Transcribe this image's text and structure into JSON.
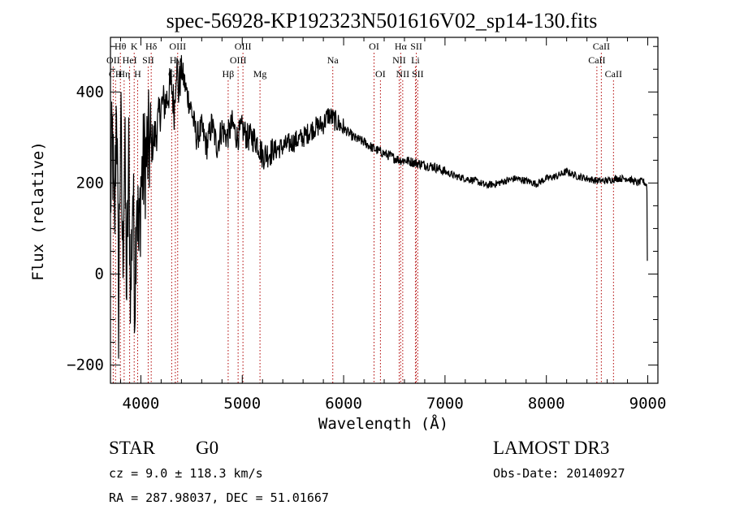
{
  "chart_data": {
    "type": "line",
    "title": "spec-56928-KP192323N501616V02_sp14-130.fits",
    "xlabel": "Wavelength (Å)",
    "ylabel": "Flux (relative)",
    "xlim": [
      3700,
      9100
    ],
    "ylim": [
      -240,
      520
    ],
    "x_ticks": [
      4000,
      5000,
      6000,
      7000,
      8000,
      9000
    ],
    "x_tick_labels": [
      "4000",
      "5000",
      "6000",
      "7000",
      "8000",
      "9000"
    ],
    "y_ticks": [
      -200,
      0,
      200,
      400
    ],
    "y_tick_labels": [
      "−200",
      "0",
      "200",
      "400"
    ],
    "series": [
      {
        "name": "spectrum",
        "x": [
          3700,
          3720,
          3740,
          3760,
          3780,
          3800,
          3820,
          3840,
          3860,
          3880,
          3900,
          3920,
          3940,
          3960,
          3980,
          4000,
          4050,
          4100,
          4150,
          4200,
          4250,
          4300,
          4330,
          4350,
          4370,
          4400,
          4450,
          4500,
          4550,
          4600,
          4650,
          4700,
          4750,
          4800,
          4850,
          4900,
          4950,
          5000,
          5050,
          5100,
          5150,
          5200,
          5300,
          5400,
          5500,
          5600,
          5700,
          5800,
          5850,
          5900,
          5950,
          6000,
          6100,
          6200,
          6300,
          6400,
          6500,
          6560,
          6600,
          6700,
          6800,
          6900,
          7000,
          7100,
          7200,
          7300,
          7400,
          7500,
          7600,
          7700,
          7800,
          7900,
          8000,
          8100,
          8200,
          8300,
          8400,
          8500,
          8600,
          8700,
          8800,
          8900,
          8950,
          8990,
          9000
        ],
        "values": [
          160,
          300,
          60,
          420,
          -80,
          350,
          30,
          280,
          -40,
          250,
          -60,
          200,
          -50,
          220,
          40,
          200,
          260,
          280,
          310,
          370,
          380,
          420,
          360,
          470,
          400,
          450,
          400,
          360,
          300,
          320,
          280,
          330,
          280,
          320,
          300,
          330,
          300,
          320,
          300,
          300,
          290,
          260,
          270,
          280,
          290,
          300,
          320,
          330,
          350,
          340,
          330,
          320,
          300,
          290,
          275,
          265,
          255,
          250,
          250,
          245,
          240,
          235,
          225,
          215,
          210,
          205,
          195,
          198,
          205,
          210,
          205,
          198,
          210,
          215,
          225,
          215,
          210,
          205,
          205,
          210,
          210,
          200,
          205,
          195,
          160
        ]
      }
    ],
    "line_annotations": [
      {
        "label": "Hθ",
        "x": 3798,
        "row": 0
      },
      {
        "label": "K",
        "x": 3934,
        "row": 0
      },
      {
        "label": "Hδ",
        "x": 4102,
        "row": 0
      },
      {
        "label": "OIII",
        "x": 4363,
        "row": 0
      },
      {
        "label": "OIII",
        "x": 5007,
        "row": 0
      },
      {
        "label": "OI",
        "x": 6300,
        "row": 0
      },
      {
        "label": "Hα",
        "x": 6563,
        "row": 0
      },
      {
        "label": "SII",
        "x": 6717,
        "row": 0
      },
      {
        "label": "CaII",
        "x": 8542,
        "row": 0
      },
      {
        "label": "OII",
        "x": 3727,
        "row": 1
      },
      {
        "label": "HeI",
        "x": 3889,
        "row": 1
      },
      {
        "label": "SII",
        "x": 4072,
        "row": 1
      },
      {
        "label": "Hγ",
        "x": 4340,
        "row": 1
      },
      {
        "label": "OIII",
        "x": 4959,
        "row": 1
      },
      {
        "label": "Na",
        "x": 5893,
        "row": 1
      },
      {
        "label": "NII",
        "x": 6548,
        "row": 1
      },
      {
        "label": "Li",
        "x": 6708,
        "row": 1
      },
      {
        "label": "CaII",
        "x": 8498,
        "row": 1
      },
      {
        "label": "CH",
        "x": 3750,
        "row": 2
      },
      {
        "label": "Hη",
        "x": 3835,
        "row": 2
      },
      {
        "label": "H",
        "x": 3968,
        "row": 2
      },
      {
        "label": "G",
        "x": 4304,
        "row": 2
      },
      {
        "label": "Hβ",
        "x": 4861,
        "row": 2
      },
      {
        "label": "Mg",
        "x": 5175,
        "row": 2
      },
      {
        "label": "OI",
        "x": 6363,
        "row": 2
      },
      {
        "label": "NII",
        "x": 6583,
        "row": 2
      },
      {
        "label": "SII",
        "x": 6731,
        "row": 2
      },
      {
        "label": "CaII",
        "x": 8662,
        "row": 2
      }
    ],
    "grid": false,
    "legend": "none"
  },
  "info": {
    "object_class": "STAR",
    "subclass": "G0",
    "survey": "LAMOST DR3",
    "redshift_text": "cz = 9.0 ± 118.3 km/s",
    "obs_date_text": "Obs-Date: 20140927",
    "coords_text": "RA = 287.98037, DEC =  51.01667"
  },
  "colors": {
    "spectrum": "#000000",
    "annotation_lines": "#b00000",
    "background": "#ffffff"
  }
}
